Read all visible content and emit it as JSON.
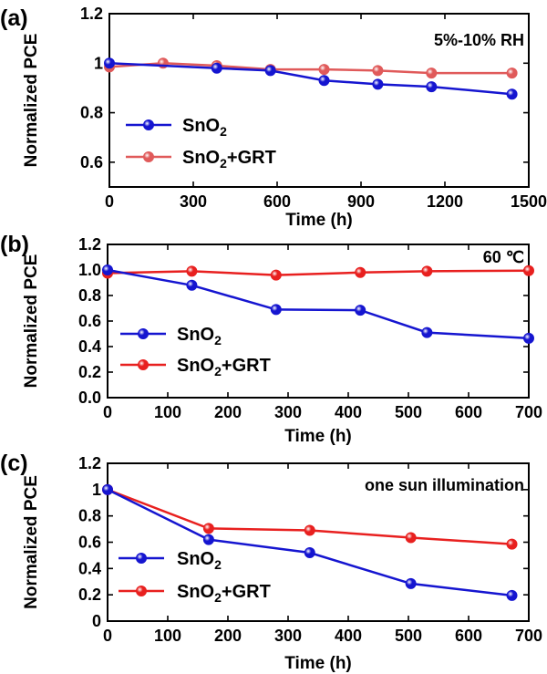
{
  "colors": {
    "sno2": "#1515d0",
    "sno2_grt": "#e8201f",
    "sno2_grt_light": "#e05a5a"
  },
  "chart_data": [
    {
      "type": "line",
      "panel_label": "(a)",
      "annotation": "5%-10% RH",
      "xlabel": "Time (h)",
      "ylabel": "Normalized PCE",
      "xlim": [
        0,
        1500
      ],
      "ylim": [
        0.5,
        1.2
      ],
      "xticks": [
        "0",
        "300",
        "600",
        "900",
        "1200",
        "1500"
      ],
      "yticks": [
        "0.6",
        "0.8",
        "1",
        "1.2"
      ],
      "legend_position": "left",
      "grid": false,
      "series": [
        {
          "name": "SnO2",
          "name_main": "SnO",
          "name_sub": "2",
          "name_suffix": "",
          "x": [
            0,
            384,
            576,
            768,
            960,
            1152,
            1440
          ],
          "y": [
            1.0,
            0.98,
            0.97,
            0.93,
            0.915,
            0.905,
            0.875
          ]
        },
        {
          "name": "SnO2+GRT",
          "name_main": "SnO",
          "name_sub": "2",
          "name_suffix": "+GRT",
          "x": [
            0,
            192,
            384,
            576,
            768,
            960,
            1152,
            1440
          ],
          "y": [
            0.985,
            1.0,
            0.99,
            0.975,
            0.975,
            0.97,
            0.96,
            0.96
          ]
        }
      ]
    },
    {
      "type": "line",
      "panel_label": "(b)",
      "annotation": "60 ℃",
      "xlabel": "Time (h)",
      "ylabel": "Normalized PCE",
      "xlim": [
        0,
        720
      ],
      "ylim": [
        0.0,
        1.2
      ],
      "xticks": [
        "0",
        "100",
        "200",
        "300",
        "400",
        "500",
        "600",
        "700"
      ],
      "yticks": [
        "0.0",
        "0.2",
        "0.4",
        "0.6",
        "0.8",
        "1.0",
        "1.2"
      ],
      "legend_position": "left",
      "grid": false,
      "series": [
        {
          "name": "SnO2",
          "name_main": "SnO",
          "name_sub": "2",
          "name_suffix": "",
          "x": [
            0,
            144,
            288,
            432,
            546,
            720
          ],
          "y": [
            1.0,
            0.88,
            0.69,
            0.685,
            0.51,
            0.465
          ]
        },
        {
          "name": "SnO2+GRT",
          "name_main": "SnO",
          "name_sub": "2",
          "name_suffix": "+GRT",
          "x": [
            0,
            144,
            288,
            432,
            546,
            720
          ],
          "y": [
            0.975,
            0.99,
            0.96,
            0.98,
            0.99,
            0.995
          ]
        }
      ]
    },
    {
      "type": "line",
      "panel_label": "(c)",
      "annotation": "one sun illumination",
      "xlabel": "Time (h)",
      "ylabel": "Normalized PCE",
      "xlim": [
        0,
        700
      ],
      "ylim": [
        0,
        1.2
      ],
      "xticks": [
        "0",
        "100",
        "200",
        "300",
        "400",
        "500",
        "600",
        "700"
      ],
      "yticks": [
        "0",
        "0.2",
        "0.4",
        "0.6",
        "0.8",
        "1",
        "1.2"
      ],
      "legend_position": "left",
      "grid": false,
      "series": [
        {
          "name": "SnO2",
          "name_main": "SnO",
          "name_sub": "2",
          "name_suffix": "",
          "x": [
            0,
            168,
            336,
            504,
            672
          ],
          "y": [
            1.0,
            0.62,
            0.52,
            0.285,
            0.195
          ]
        },
        {
          "name": "SnO2+GRT",
          "name_main": "SnO",
          "name_sub": "2",
          "name_suffix": "+GRT",
          "x": [
            0,
            168,
            336,
            504,
            672
          ],
          "y": [
            1.0,
            0.705,
            0.69,
            0.635,
            0.585
          ]
        }
      ]
    }
  ]
}
